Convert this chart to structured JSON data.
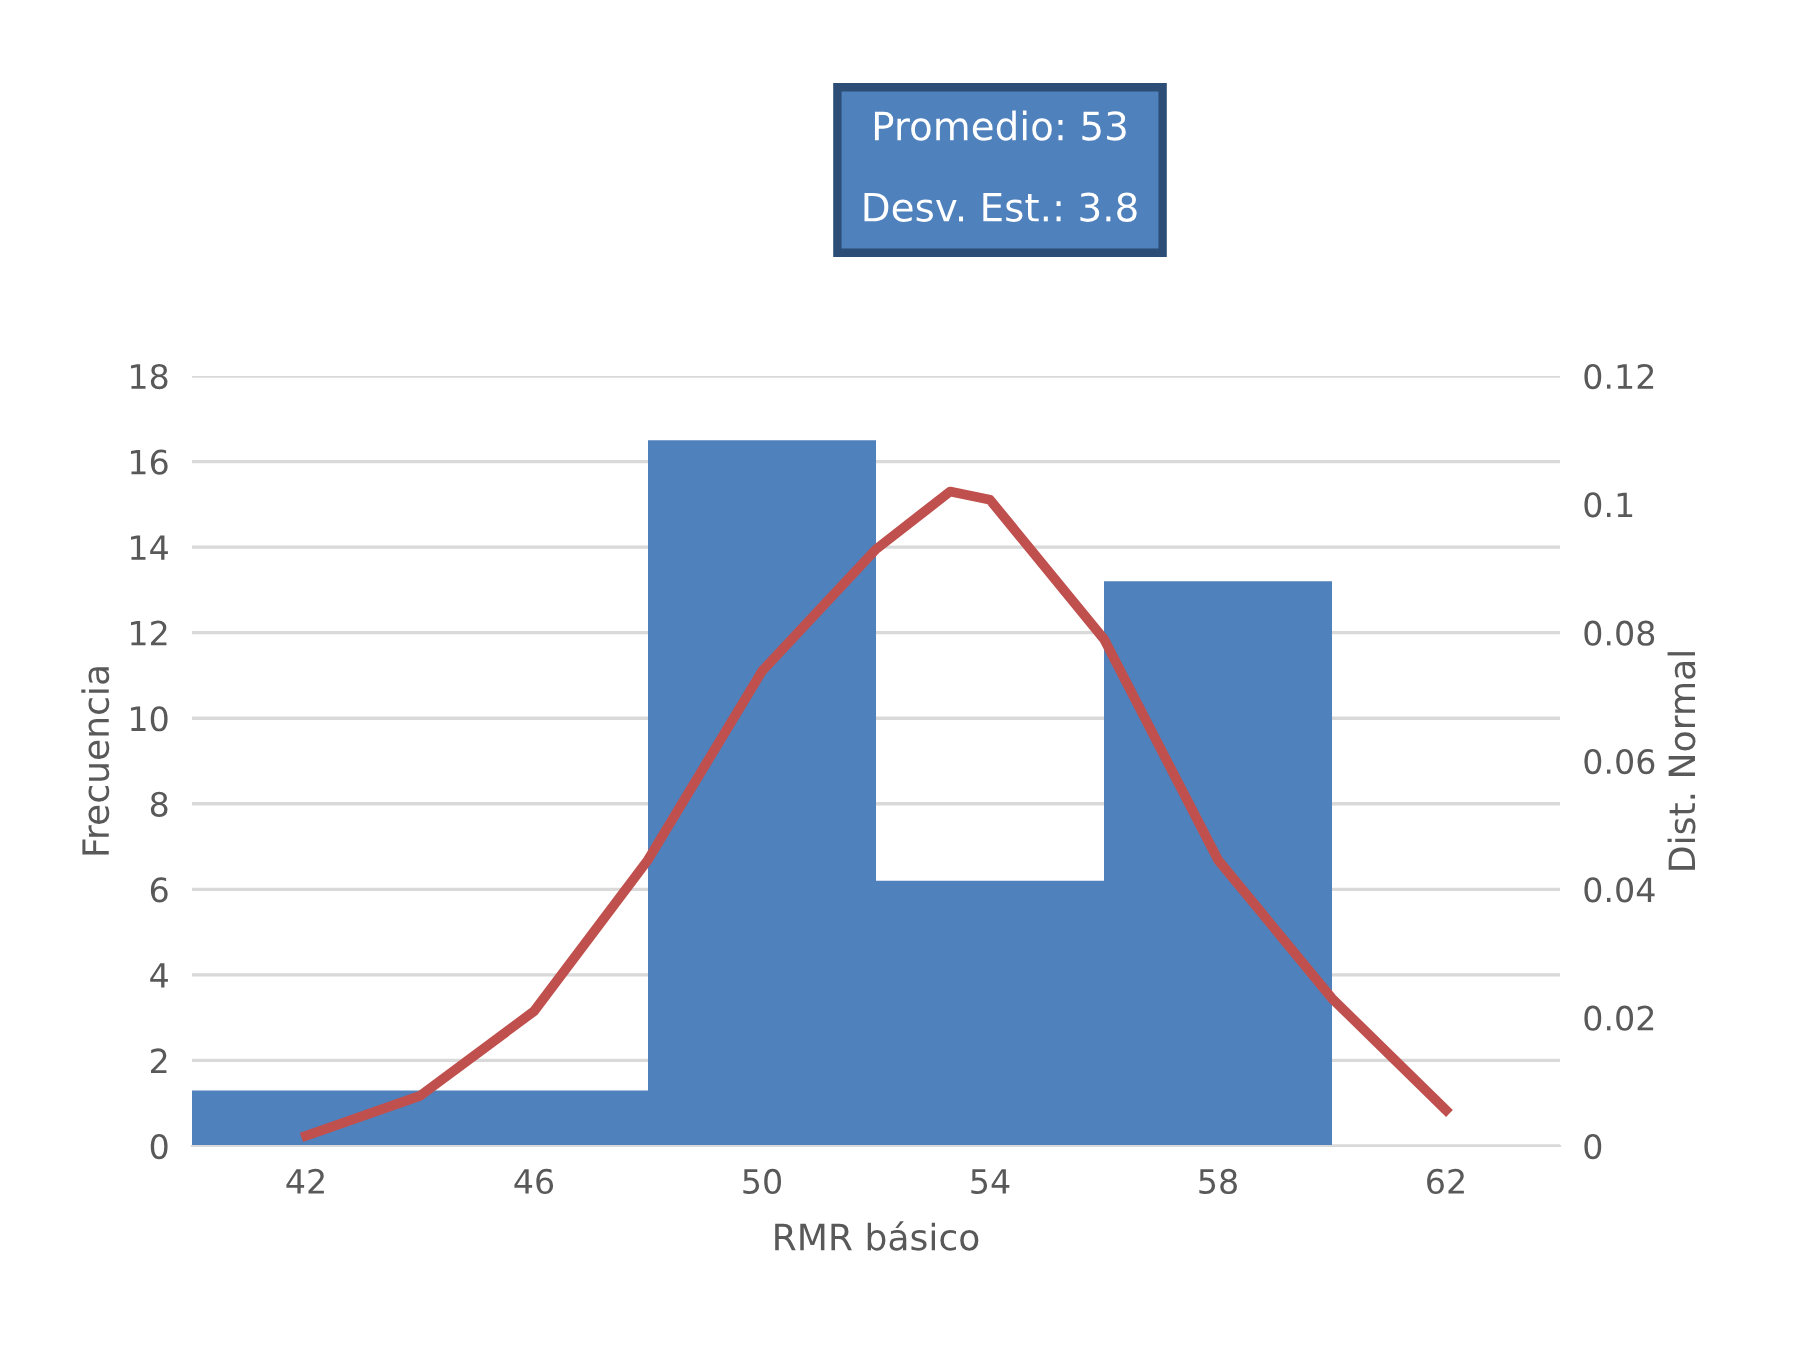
{
  "chart_data": {
    "type": "histogram",
    "xlabel": "RMR básico",
    "ylabel": "Frecuencia",
    "y2label": "Dist. Normal",
    "annotations": [
      "Promedio: 53",
      "Desv. Est.: 3.8"
    ],
    "bins": [
      40,
      48,
      52,
      56,
      60
    ],
    "values": [
      1.3,
      16.5,
      6.2,
      13.2
    ],
    "color": "#4f81bd",
    "series": [
      {
        "type": "line",
        "axis": "y2",
        "color": "#c0504d",
        "x": [
          42,
          44,
          46,
          48,
          50,
          52,
          53.3,
          54,
          56,
          58,
          60,
          62
        ],
        "values": [
          0.0016,
          0.0078,
          0.021,
          0.0446,
          0.074,
          0.093,
          0.102,
          0.1007,
          0.079,
          0.0446,
          0.023,
          0.0056
        ]
      }
    ],
    "xlim": [
      40,
      64
    ],
    "xticks": [
      42,
      46,
      50,
      54,
      58,
      62
    ],
    "ylim": [
      0,
      18
    ],
    "yticks": [
      0,
      2,
      4,
      6,
      8,
      10,
      12,
      14,
      16,
      18
    ],
    "y2lim": [
      0,
      0.12
    ],
    "y2ticks": [
      0,
      0.02,
      0.04,
      0.06,
      0.08,
      0.1,
      0.12
    ],
    "grid": "y",
    "legend": false
  }
}
